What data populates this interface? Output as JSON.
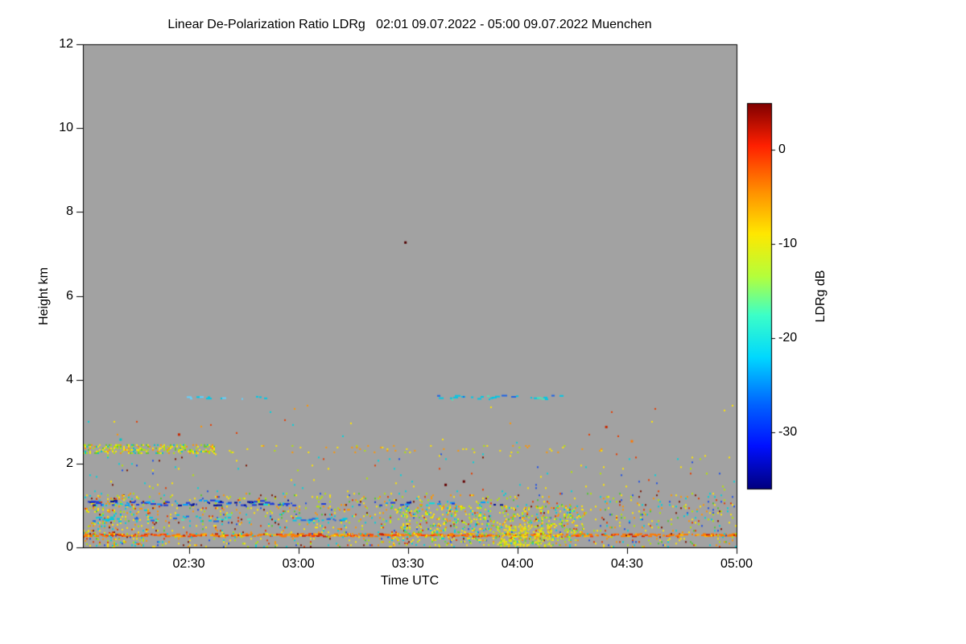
{
  "chart_data": {
    "type": "heatmap",
    "title": "Linear De-Polarization Ratio LDRg   02:01 09.07.2022 - 05:00 09.07.2022 Muenchen",
    "location": "Muenchen",
    "date": "09.07.2022",
    "time_start_utc": "02:01",
    "time_end_utc": "05:00",
    "xlabel": "Time UTC",
    "ylabel": "Height km",
    "x_ticks": [
      "02:30",
      "03:00",
      "03:30",
      "04:00",
      "04:30",
      "05:00"
    ],
    "x_tick_minutes": [
      29,
      59,
      89,
      119,
      149,
      179
    ],
    "x_total_minutes": 179,
    "y_ticks": [
      0,
      2,
      4,
      6,
      8,
      10,
      12
    ],
    "ylim": [
      0,
      12
    ],
    "grid": false,
    "background_color": "#a2a2a2",
    "background_meaning": "no signal / below detection",
    "colorbar": {
      "label": "LDRg dB",
      "ticks": [
        0,
        -10,
        -20,
        -30
      ],
      "range": [
        5,
        -36
      ],
      "position": "right",
      "gradient_stops": [
        [
          0.0,
          "#7f0000"
        ],
        [
          0.11,
          "#ff2000"
        ],
        [
          0.23,
          "#ff9000"
        ],
        [
          0.34,
          "#ffe800"
        ],
        [
          0.45,
          "#b4ff3c"
        ],
        [
          0.55,
          "#3cffc8"
        ],
        [
          0.66,
          "#00d8ff"
        ],
        [
          0.78,
          "#0064ff"
        ],
        [
          0.89,
          "#0010ff"
        ],
        [
          1.0,
          "#000080"
        ]
      ]
    },
    "features": [
      {
        "name": "surface-aerosol-line",
        "kind": "streak",
        "t": [
          0,
          179
        ],
        "h": [
          0.24,
          0.34
        ],
        "density": 0.75,
        "palette": [
          [
            "#ff7a00",
            0.55
          ],
          [
            "#ff3c00",
            0.2
          ],
          [
            "#ffb400",
            0.15
          ],
          [
            "#c81e00",
            0.1
          ]
        ]
      },
      {
        "name": "boundary-layer-speckle",
        "kind": "speckle",
        "t": [
          0,
          179
        ],
        "h": [
          0.02,
          1.3
        ],
        "density": 0.085,
        "palette": [
          [
            "#ffe600",
            0.22
          ],
          [
            "#b4e600",
            0.16
          ],
          [
            "#50c832",
            0.08
          ],
          [
            "#00d2dc",
            0.14
          ],
          [
            "#ff9600",
            0.16
          ],
          [
            "#e63c00",
            0.1
          ],
          [
            "#7d1400",
            0.07
          ],
          [
            "#1e50e6",
            0.07
          ]
        ]
      },
      {
        "name": "left-edge-dense-patch",
        "kind": "speckle",
        "t": [
          0,
          18
        ],
        "h": [
          0.05,
          1.25
        ],
        "density": 0.12,
        "palette": [
          [
            "#ffe600",
            0.3
          ],
          [
            "#b4e600",
            0.2
          ],
          [
            "#00d2dc",
            0.2
          ],
          [
            "#ff9600",
            0.15
          ],
          [
            "#e63c00",
            0.15
          ]
        ]
      },
      {
        "name": "dense-lowlevel-patch-0325-0420",
        "kind": "speckle",
        "t": [
          84,
          137
        ],
        "h": [
          0.05,
          1.0
        ],
        "density": 0.17,
        "palette": [
          [
            "#ffe600",
            0.3
          ],
          [
            "#c8f000",
            0.25
          ],
          [
            "#64dc3c",
            0.15
          ],
          [
            "#00d2dc",
            0.15
          ],
          [
            "#ff9600",
            0.1
          ],
          [
            "#e63c00",
            0.05
          ]
        ]
      },
      {
        "name": "very-dense-0400-patch",
        "kind": "speckle",
        "t": [
          113,
          128
        ],
        "h": [
          0.05,
          0.55
        ],
        "density": 0.35,
        "palette": [
          [
            "#ffe600",
            0.5
          ],
          [
            "#c8f000",
            0.25
          ],
          [
            "#ffb400",
            0.15
          ],
          [
            "#64dc3c",
            0.1
          ]
        ]
      },
      {
        "name": "blue-streak-1km-strong",
        "kind": "streak",
        "t": [
          0,
          56
        ],
        "h": [
          0.98,
          1.14
        ],
        "density": 0.55,
        "palette": [
          [
            "#1e3cdc",
            0.45
          ],
          [
            "#000f9b",
            0.25
          ],
          [
            "#00a0ff",
            0.2
          ],
          [
            "#00e1e1",
            0.1
          ]
        ]
      },
      {
        "name": "blue-streak-1km-sparse",
        "kind": "streak",
        "t": [
          56,
          115
        ],
        "h": [
          0.98,
          1.12
        ],
        "density": 0.18,
        "palette": [
          [
            "#1e3cdc",
            0.4
          ],
          [
            "#000f9b",
            0.2
          ],
          [
            "#00a0ff",
            0.25
          ],
          [
            "#00e1e1",
            0.15
          ]
        ]
      },
      {
        "name": "cyan-streak-0.7km",
        "kind": "streak",
        "t": [
          0,
          46
        ],
        "h": [
          0.6,
          0.8
        ],
        "density": 0.3,
        "palette": [
          [
            "#00c8e6",
            0.5
          ],
          [
            "#1e64e6",
            0.3
          ],
          [
            "#50e6b4",
            0.2
          ]
        ]
      },
      {
        "name": "cyan-dash-0.65km-0300",
        "kind": "streak",
        "t": [
          57,
          74
        ],
        "h": [
          0.62,
          0.72
        ],
        "density": 0.3,
        "palette": [
          [
            "#00c8e6",
            0.6
          ],
          [
            "#1e64e6",
            0.4
          ]
        ]
      },
      {
        "name": "elevated-band-2.35km-dense",
        "kind": "speckle",
        "t": [
          0,
          36
        ],
        "h": [
          2.26,
          2.46
        ],
        "density": 0.38,
        "palette": [
          [
            "#ffe600",
            0.3
          ],
          [
            "#b4e600",
            0.3
          ],
          [
            "#64c832",
            0.15
          ],
          [
            "#ff9600",
            0.15
          ],
          [
            "#00c8c8",
            0.1
          ]
        ]
      },
      {
        "name": "elevated-band-2.35km-sparse",
        "kind": "speckle",
        "t": [
          36,
          142
        ],
        "h": [
          2.28,
          2.44
        ],
        "density": 0.045,
        "palette": [
          [
            "#ffe600",
            0.5
          ],
          [
            "#ff9600",
            0.3
          ],
          [
            "#b4e600",
            0.2
          ]
        ]
      },
      {
        "name": "cyan-layer-3.55km-early",
        "kind": "streak",
        "t": [
          28,
          52
        ],
        "h": [
          3.5,
          3.62
        ],
        "density": 0.22,
        "palette": [
          [
            "#00c8e6",
            0.7
          ],
          [
            "#64d2ff",
            0.3
          ]
        ]
      },
      {
        "name": "cyan-layer-3.55km-late",
        "kind": "streak",
        "t": [
          97,
          131
        ],
        "h": [
          3.5,
          3.64
        ],
        "density": 0.28,
        "palette": [
          [
            "#00c8e6",
            0.6
          ],
          [
            "#50e6b4",
            0.2
          ],
          [
            "#1e64e6",
            0.2
          ]
        ]
      },
      {
        "name": "midlevel-sparse-speckle",
        "kind": "speckle",
        "t": [
          0,
          179
        ],
        "h": [
          1.32,
          2.24
        ],
        "density": 0.011,
        "palette": [
          [
            "#00d2dc",
            0.25
          ],
          [
            "#ffe600",
            0.2
          ],
          [
            "#b4e600",
            0.15
          ],
          [
            "#e63c00",
            0.15
          ],
          [
            "#7d1400",
            0.1
          ],
          [
            "#1e50e6",
            0.15
          ]
        ]
      },
      {
        "name": "upper-sparse-dots",
        "kind": "speckle",
        "t": [
          0,
          179
        ],
        "h": [
          2.5,
          3.4
        ],
        "density": 0.0025,
        "palette": [
          [
            "#00d2dc",
            0.3
          ],
          [
            "#ffe600",
            0.3
          ],
          [
            "#e63c00",
            0.2
          ],
          [
            "#ff9600",
            0.2
          ]
        ]
      }
    ],
    "points": [
      {
        "t": 88,
        "h": 7.3,
        "color": "#500000"
      },
      {
        "t": 26,
        "h": 2.72,
        "color": "#c82800"
      },
      {
        "t": 150,
        "h": 2.56,
        "color": "#ff7800"
      },
      {
        "t": 143,
        "h": 2.9,
        "color": "#c82800"
      },
      {
        "t": 10,
        "h": 2.6,
        "color": "#00c8c8"
      },
      {
        "t": 99,
        "h": 1.52,
        "color": "#640000"
      },
      {
        "t": 104,
        "h": 1.6,
        "color": "#640000"
      }
    ]
  }
}
